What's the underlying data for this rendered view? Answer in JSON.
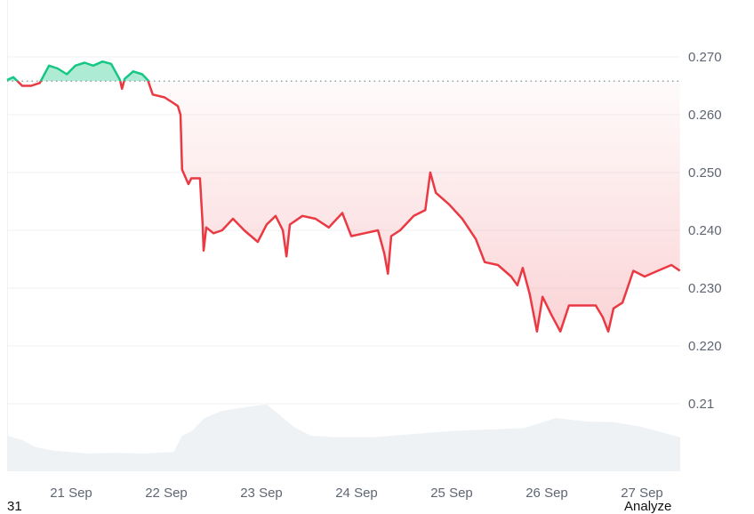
{
  "chart_data": {
    "type": "line",
    "title": "",
    "xlabel": "",
    "ylabel": "",
    "ylim": [
      0.2,
      0.28
    ],
    "y_ticks": [
      "0.270",
      "0.260",
      "0.250",
      "0.240",
      "0.230",
      "0.220",
      "0.21"
    ],
    "y_tick_values": [
      0.27,
      0.26,
      0.25,
      0.24,
      0.23,
      0.22,
      0.21
    ],
    "x_ticks": [
      "21 Sep",
      "22 Sep",
      "23 Sep",
      "24 Sep",
      "25 Sep",
      "26 Sep",
      "27 Sep"
    ],
    "grid": true,
    "y_axis_side": "right",
    "baseline": 0.2658,
    "colors": {
      "up": "#16c784",
      "down": "#ea3943",
      "volume": "#eff2f5",
      "grid": "#eff2f5",
      "baseline": "#9aa0a8"
    },
    "series": [
      {
        "points": [
          [
            "20 Sep 07:50",
            0.266
          ],
          [
            "20 Sep 09:25",
            0.2665
          ],
          [
            "20 Sep 11:40",
            0.265
          ],
          [
            "20 Sep 13:55",
            0.265
          ],
          [
            "20 Sep 16:05",
            0.2655
          ],
          [
            "20 Sep 18:25",
            0.2685
          ],
          [
            "20 Sep 20:35",
            0.268
          ],
          [
            "20 Sep 22:55",
            0.267
          ],
          [
            "21 Sep 01:05",
            0.2685
          ],
          [
            "21 Sep 03:25",
            0.269
          ],
          [
            "21 Sep 05:35",
            0.2685
          ],
          [
            "21 Sep 07:55",
            0.2692
          ],
          [
            "21 Sep 10:05",
            0.2688
          ],
          [
            "21 Sep 12:20",
            0.266
          ],
          [
            "21 Sep 12:50",
            0.2645
          ],
          [
            "21 Sep 13:30",
            0.2662
          ],
          [
            "21 Sep 15:40",
            0.2675
          ],
          [
            "21 Sep 17:55",
            0.267
          ],
          [
            "21 Sep 19:20",
            0.266
          ],
          [
            "21 Sep 20:35",
            0.2635
          ],
          [
            "21 Sep 23:35",
            0.263
          ],
          [
            "22 Sep 01:50",
            0.262
          ],
          [
            "22 Sep 02:55",
            0.2615
          ],
          [
            "22 Sep 03:35",
            0.26
          ],
          [
            "22 Sep 04:00",
            0.2505
          ],
          [
            "22 Sep 05:35",
            0.248
          ],
          [
            "22 Sep 06:20",
            0.249
          ],
          [
            "22 Sep 08:30",
            0.249
          ],
          [
            "22 Sep 09:10",
            0.241
          ],
          [
            "22 Sep 09:25",
            0.2365
          ],
          [
            "22 Sep 10:05",
            0.2405
          ],
          [
            "22 Sep 11:55",
            0.2395
          ],
          [
            "22 Sep 14:05",
            0.24
          ],
          [
            "22 Sep 16:50",
            0.242
          ],
          [
            "22 Sep 19:40",
            0.24
          ],
          [
            "22 Sep 23:05",
            0.238
          ],
          [
            "23 Sep 01:20",
            0.241
          ],
          [
            "23 Sep 03:35",
            0.2425
          ],
          [
            "23 Sep 05:25",
            0.24
          ],
          [
            "23 Sep 06:20",
            0.2355
          ],
          [
            "23 Sep 07:10",
            0.241
          ],
          [
            "23 Sep 10:20",
            0.2425
          ],
          [
            "23 Sep 13:40",
            0.242
          ],
          [
            "23 Sep 17:00",
            0.2405
          ],
          [
            "23 Sep 20:25",
            0.243
          ],
          [
            "23 Sep 22:40",
            0.239
          ],
          [
            "24 Sep 02:00",
            0.2395
          ],
          [
            "24 Sep 05:25",
            0.24
          ],
          [
            "24 Sep 07:00",
            0.236
          ],
          [
            "24 Sep 07:55",
            0.2325
          ],
          [
            "24 Sep 08:45",
            0.239
          ],
          [
            "24 Sep 11:00",
            0.24
          ],
          [
            "24 Sep 14:25",
            0.2425
          ],
          [
            "24 Sep 17:20",
            0.2435
          ],
          [
            "24 Sep 18:35",
            0.25
          ],
          [
            "24 Sep 20:00",
            0.2465
          ],
          [
            "24 Sep 23:20",
            0.2445
          ],
          [
            "25 Sep 02:40",
            0.242
          ],
          [
            "25 Sep 06:05",
            0.2385
          ],
          [
            "25 Sep 08:20",
            0.2345
          ],
          [
            "25 Sep 11:40",
            0.234
          ],
          [
            "25 Sep 15:00",
            0.232
          ],
          [
            "25 Sep 16:35",
            0.2305
          ],
          [
            "25 Sep 17:55",
            0.2335
          ],
          [
            "25 Sep 19:40",
            0.229
          ],
          [
            "25 Sep 21:30",
            0.2225
          ],
          [
            "25 Sep 22:55",
            0.2285
          ],
          [
            "26 Sep 01:05",
            0.2255
          ],
          [
            "26 Sep 03:25",
            0.2225
          ],
          [
            "26 Sep 05:35",
            0.227
          ],
          [
            "26 Sep 09:00",
            0.227
          ],
          [
            "26 Sep 12:20",
            0.227
          ],
          [
            "26 Sep 14:05",
            0.225
          ],
          [
            "26 Sep 15:30",
            0.2225
          ],
          [
            "26 Sep 16:50",
            0.2265
          ],
          [
            "26 Sep 19:05",
            0.2275
          ],
          [
            "26 Sep 21:50",
            0.233
          ],
          [
            "27 Sep 00:40",
            0.232
          ],
          [
            "27 Sep 04:00",
            0.233
          ],
          [
            "27 Sep 07:25",
            0.234
          ],
          [
            "27 Sep 09:35",
            0.233
          ]
        ]
      }
    ],
    "volume": {
      "relative": true,
      "points": [
        [
          "20 Sep 07:50",
          0.5
        ],
        [
          "20 Sep 11:40",
          0.44
        ],
        [
          "20 Sep 15:00",
          0.34
        ],
        [
          "20 Sep 19:30",
          0.29
        ],
        [
          "21 Sep 04:30",
          0.25
        ],
        [
          "21 Sep 11:10",
          0.26
        ],
        [
          "21 Sep 17:55",
          0.25
        ],
        [
          "22 Sep 01:50",
          0.27
        ],
        [
          "22 Sep 04:00",
          0.5
        ],
        [
          "22 Sep 06:20",
          0.56
        ],
        [
          "22 Sep 09:40",
          0.75
        ],
        [
          "22 Sep 14:05",
          0.85
        ],
        [
          "22 Sep 20:50",
          0.91
        ],
        [
          "23 Sep 01:20",
          0.94
        ],
        [
          "23 Sep 04:40",
          0.79
        ],
        [
          "23 Sep 08:00",
          0.63
        ],
        [
          "23 Sep 12:30",
          0.5
        ],
        [
          "23 Sep 19:10",
          0.48
        ],
        [
          "24 Sep 04:10",
          0.48
        ],
        [
          "24 Sep 08:45",
          0.5
        ],
        [
          "24 Sep 15:30",
          0.53
        ],
        [
          "24 Sep 22:15",
          0.56
        ],
        [
          "25 Sep 05:00",
          0.58
        ],
        [
          "25 Sep 11:40",
          0.59
        ],
        [
          "25 Sep 18:25",
          0.61
        ],
        [
          "25 Sep 22:55",
          0.69
        ],
        [
          "26 Sep 02:20",
          0.75
        ],
        [
          "26 Sep 10:10",
          0.7
        ],
        [
          "26 Sep 16:50",
          0.69
        ],
        [
          "26 Sep 23:35",
          0.63
        ],
        [
          "27 Sep 09:35",
          0.48
        ]
      ]
    }
  },
  "footer": {
    "left_fragment": "31",
    "right_fragment": "Analyze"
  }
}
